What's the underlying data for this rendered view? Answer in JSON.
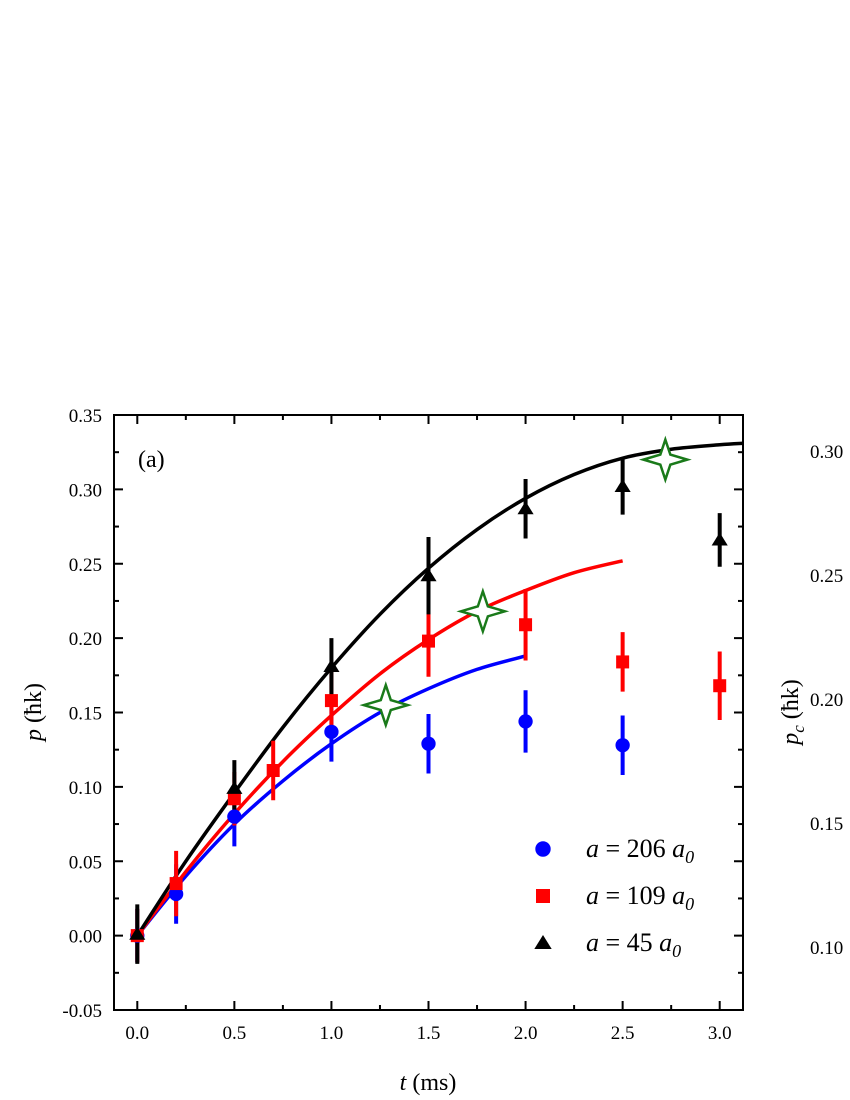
{
  "chart_data": [
    {
      "type": "scatter",
      "panel_label": "(a)",
      "xlabel_var": "t",
      "xlabel_unit": " (ms)",
      "ylabel_var": "p",
      "ylabel_unit": " (ħk)",
      "xlim": [
        -0.12,
        3.12
      ],
      "ylim": [
        -0.05,
        0.35
      ],
      "xticks": [
        "0.0",
        "0.5",
        "1.0",
        "1.5",
        "2.0",
        "2.5",
        "3.0"
      ],
      "xtick_values": [
        0,
        0.5,
        1.0,
        1.5,
        2.0,
        2.5,
        3.0
      ],
      "yticks": [
        "-0.05",
        "0.00",
        "0.05",
        "0.10",
        "0.15",
        "0.20",
        "0.25",
        "0.30",
        "0.35"
      ],
      "ytick_values": [
        -0.05,
        0,
        0.05,
        0.1,
        0.15,
        0.2,
        0.25,
        0.3,
        0.35
      ],
      "series": [
        {
          "name": "a = 206 a0",
          "legend_var": "a",
          "legend_eq": " = 206 ",
          "legend_sym": "a",
          "legend_sub": "0",
          "color": "#0000ff",
          "marker": "circle",
          "x": [
            0.0,
            0.2,
            0.5,
            1.0,
            1.5,
            2.0,
            2.5
          ],
          "y": [
            0.0,
            0.028,
            0.08,
            0.137,
            0.129,
            0.144,
            0.128
          ],
          "yerr": [
            0.018,
            0.02,
            0.02,
            0.02,
            0.02,
            0.021,
            0.02
          ],
          "fit_x": [
            0.0,
            0.25,
            0.5,
            0.75,
            1.0,
            1.25,
            1.5,
            1.75,
            2.0
          ],
          "fit_y": [
            0.0,
            0.04,
            0.075,
            0.104,
            0.129,
            0.15,
            0.166,
            0.179,
            0.188
          ]
        },
        {
          "name": "a = 109 a0",
          "legend_var": "a",
          "legend_eq": " = 109 ",
          "legend_sym": "a",
          "legend_sub": "0",
          "color": "#ff0000",
          "marker": "square",
          "x": [
            0.0,
            0.2,
            0.5,
            0.7,
            1.0,
            1.5,
            2.0,
            2.5,
            3.0
          ],
          "y": [
            0.0,
            0.035,
            0.092,
            0.111,
            0.158,
            0.198,
            0.209,
            0.184,
            0.168
          ],
          "yerr": [
            0.018,
            0.022,
            0.018,
            0.02,
            0.02,
            0.024,
            0.024,
            0.02,
            0.023
          ],
          "fit_x": [
            0.0,
            0.25,
            0.5,
            0.75,
            1.0,
            1.25,
            1.5,
            1.75,
            2.0,
            2.25,
            2.5
          ],
          "fit_y": [
            0.0,
            0.043,
            0.082,
            0.117,
            0.148,
            0.176,
            0.199,
            0.218,
            0.232,
            0.244,
            0.252
          ]
        },
        {
          "name": "a = 45 a0",
          "legend_var": "a",
          "legend_eq": " = 45 ",
          "legend_sym": "a",
          "legend_sub": "0",
          "color": "#000000",
          "marker": "triangle",
          "x": [
            0.0,
            0.5,
            1.0,
            1.5,
            2.0,
            2.5,
            3.0
          ],
          "y": [
            0.001,
            0.099,
            0.181,
            0.242,
            0.287,
            0.302,
            0.266
          ],
          "yerr": [
            0.02,
            0.019,
            0.019,
            0.026,
            0.02,
            0.019,
            0.018
          ],
          "fit_x": [
            0.0,
            0.25,
            0.5,
            0.75,
            1.0,
            1.25,
            1.5,
            1.75,
            2.0,
            2.25,
            2.5,
            2.75,
            3.0,
            3.12
          ],
          "fit_y": [
            0.0,
            0.05,
            0.096,
            0.14,
            0.18,
            0.216,
            0.247,
            0.273,
            0.294,
            0.31,
            0.321,
            0.327,
            0.33,
            0.331
          ]
        }
      ],
      "star_markers": {
        "color": "#1a7a1a",
        "x": [
          1.28,
          1.78,
          2.72
        ],
        "y": [
          0.155,
          0.218,
          0.32
        ]
      }
    },
    {
      "type": "line",
      "ylabel_var": "p",
      "ylabel_sub": "c",
      "ylabel_unit": " (ħk)",
      "yticks": [
        "0.30",
        "0.25",
        "0.20",
        "0.15",
        "0.10"
      ],
      "ytick_values": [
        0.3,
        0.25,
        0.2,
        0.15,
        0.1
      ]
    }
  ]
}
